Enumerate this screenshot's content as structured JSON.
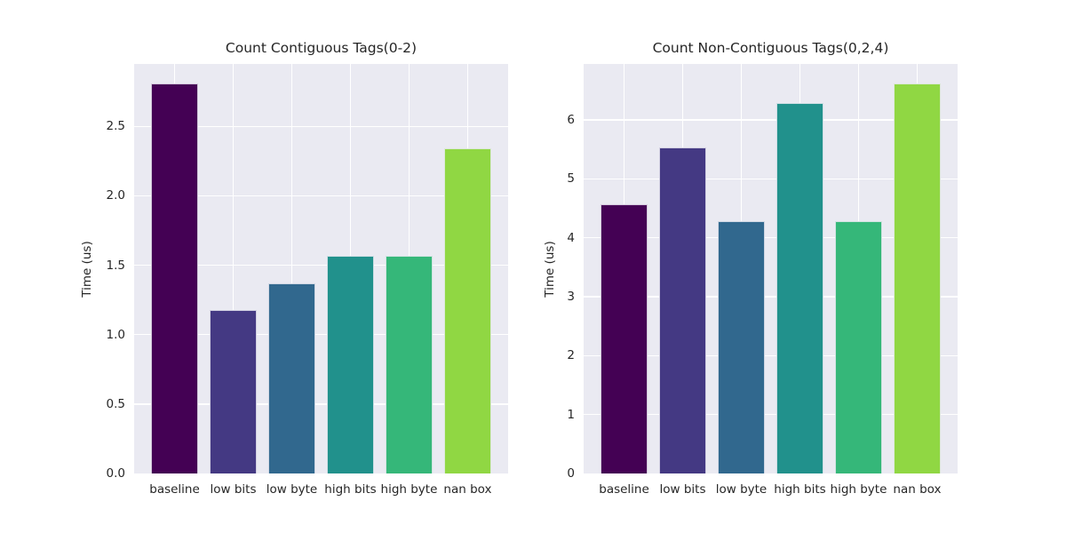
{
  "figure": {
    "background": "#ffffff",
    "panel_background": "#eaeaf2",
    "grid_color": "#ffffff",
    "text_color": "#262626"
  },
  "palette": [
    "#440154",
    "#443983",
    "#31688e",
    "#21918c",
    "#35b779",
    "#90d743"
  ],
  "chart_data": [
    {
      "type": "bar",
      "title": "Count Contiguous Tags(0-2)",
      "xlabel": "",
      "ylabel": "Time (us)",
      "categories": [
        "baseline",
        "low bits",
        "low byte",
        "high bits",
        "high byte",
        "nan box"
      ],
      "values": [
        2.81,
        1.18,
        1.37,
        1.57,
        1.57,
        2.34
      ],
      "ylim": [
        0,
        2.95
      ],
      "ytick_values": [
        0,
        0.5,
        1.0,
        1.5,
        2.0,
        2.5
      ],
      "ytick_labels": [
        "0.0",
        "0.5",
        "1.0",
        "1.5",
        "2.0",
        "2.5"
      ],
      "grid": true,
      "legend": false
    },
    {
      "type": "bar",
      "title": "Count Non-Contiguous Tags(0,2,4)",
      "xlabel": "",
      "ylabel": "Time (us)",
      "categories": [
        "baseline",
        "low bits",
        "low byte",
        "high bits",
        "high byte",
        "nan box"
      ],
      "values": [
        4.57,
        5.54,
        4.28,
        6.28,
        4.28,
        6.62
      ],
      "ylim": [
        0,
        6.95
      ],
      "ytick_values": [
        0,
        1,
        2,
        3,
        4,
        5,
        6
      ],
      "ytick_labels": [
        "0",
        "1",
        "2",
        "3",
        "4",
        "5",
        "6"
      ],
      "grid": true,
      "legend": false
    }
  ]
}
